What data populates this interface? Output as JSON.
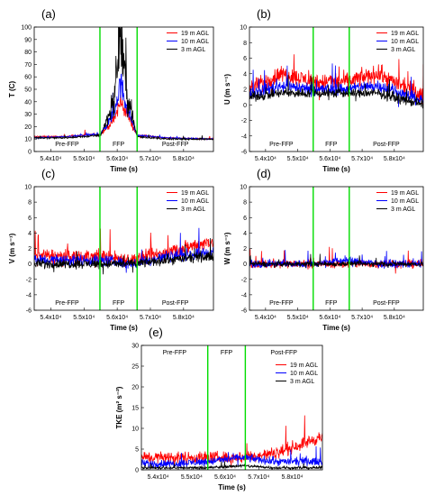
{
  "chart_data": [
    {
      "type": "line",
      "panel": "(a)",
      "xlabel": "Time (s)",
      "ylabel": "T (C)",
      "xlim": [
        53500,
        58900
      ],
      "ylim": [
        0,
        100
      ],
      "yticks": [
        0,
        10,
        20,
        30,
        40,
        50,
        60,
        70,
        80,
        90,
        100
      ],
      "xticks": [
        54000,
        55000,
        56000,
        57000,
        58000
      ],
      "xtick_labels": [
        "5.4x10⁴",
        "5.5x10⁴",
        "5.6x10⁴",
        "5.7x10⁴",
        "5.8x10⁴"
      ],
      "ffp_bounds": [
        55480,
        56600
      ],
      "regions": [
        "Pre-FFP",
        "FFP",
        "Post-FFP"
      ],
      "legend_position": "top-right",
      "series": [
        {
          "name": "19 m AGL",
          "color": "#ff0000",
          "x": [
            53500,
            54500,
            55500,
            55900,
            56100,
            56300,
            56600,
            57500,
            58900
          ],
          "values": [
            12,
            12,
            14,
            25,
            40,
            30,
            13,
            11,
            10
          ]
        },
        {
          "name": "10 m AGL",
          "color": "#0000ff",
          "x": [
            53500,
            54500,
            55500,
            55900,
            56100,
            56300,
            56600,
            57500,
            58900
          ],
          "values": [
            11,
            12,
            14,
            30,
            55,
            35,
            13,
            11,
            10
          ]
        },
        {
          "name": "3 m AGL",
          "color": "#000000",
          "x": [
            53500,
            54500,
            55500,
            55900,
            56100,
            56300,
            56600,
            57500,
            58900
          ],
          "values": [
            11,
            11,
            13,
            40,
            95,
            45,
            12,
            10,
            10
          ]
        }
      ]
    },
    {
      "type": "line",
      "panel": "(b)",
      "xlabel": "Time (s)",
      "ylabel": "U (m s⁻¹)",
      "xlim": [
        53500,
        58900
      ],
      "ylim": [
        -6,
        10
      ],
      "yticks": [
        -6,
        -4,
        -2,
        0,
        2,
        4,
        6,
        8,
        10
      ],
      "xticks": [
        54000,
        55000,
        56000,
        57000,
        58000
      ],
      "xtick_labels": [
        "5.4x10⁴",
        "5.5x10⁴",
        "5.6x10⁴",
        "5.7x10⁴",
        "5.8x10⁴"
      ],
      "ffp_bounds": [
        55480,
        56600
      ],
      "regions": [
        "Pre-FFP",
        "FFP",
        "Post-FFP"
      ],
      "legend_position": "top-right",
      "series": [
        {
          "name": "19 m AGL",
          "color": "#ff0000",
          "x": [
            53500,
            54500,
            55500,
            56500,
            57500,
            58900
          ],
          "values": [
            2,
            4,
            3,
            3,
            4,
            1
          ]
        },
        {
          "name": "10 m AGL",
          "color": "#0000ff",
          "x": [
            53500,
            54500,
            55500,
            56500,
            57500,
            58900
          ],
          "values": [
            1.5,
            2.5,
            2,
            2,
            2.5,
            0.5
          ]
        },
        {
          "name": "3 m AGL",
          "color": "#000000",
          "x": [
            53500,
            54500,
            55500,
            56500,
            57500,
            58900
          ],
          "values": [
            1,
            1.5,
            1.5,
            1.5,
            1.5,
            0
          ]
        }
      ]
    },
    {
      "type": "line",
      "panel": "(c)",
      "xlabel": "Time (s)",
      "ylabel": "V (m s⁻¹)",
      "xlim": [
        53500,
        58900
      ],
      "ylim": [
        -6,
        10
      ],
      "yticks": [
        -6,
        -4,
        -2,
        0,
        2,
        4,
        6,
        8,
        10
      ],
      "xticks": [
        54000,
        55000,
        56000,
        57000,
        58000
      ],
      "xtick_labels": [
        "5.4x10⁴",
        "5.5x10⁴",
        "5.6x10⁴",
        "5.7x10⁴",
        "5.8x10⁴"
      ],
      "ffp_bounds": [
        55480,
        56600
      ],
      "regions": [
        "Pre-FFP",
        "FFP",
        "Post-FFP"
      ],
      "legend_position": "top-right",
      "series": [
        {
          "name": "19 m AGL",
          "color": "#ff0000",
          "x": [
            53500,
            54500,
            55500,
            56500,
            57500,
            58900
          ],
          "values": [
            1,
            1,
            1,
            0.5,
            1.5,
            3
          ]
        },
        {
          "name": "10 m AGL",
          "color": "#0000ff",
          "x": [
            53500,
            54500,
            55500,
            56500,
            57500,
            58900
          ],
          "values": [
            0.5,
            0.5,
            0.5,
            0,
            1,
            1.5
          ]
        },
        {
          "name": "3 m AGL",
          "color": "#000000",
          "x": [
            53500,
            54500,
            55500,
            56500,
            57500,
            58900
          ],
          "values": [
            0,
            0,
            0,
            0,
            0.5,
            1
          ]
        }
      ]
    },
    {
      "type": "line",
      "panel": "(d)",
      "xlabel": "Time (s)",
      "ylabel": "W (m s⁻¹)",
      "xlim": [
        53500,
        58900
      ],
      "ylim": [
        -6,
        10
      ],
      "yticks": [
        -6,
        -4,
        -2,
        0,
        2,
        4,
        6,
        8,
        10
      ],
      "xticks": [
        54000,
        55000,
        56000,
        57000,
        58000
      ],
      "xtick_labels": [
        "5.4x10⁴",
        "5.5x10⁴",
        "5.6x10⁴",
        "5.7x10⁴",
        "5.8x10⁴"
      ],
      "ffp_bounds": [
        55480,
        56600
      ],
      "regions": [
        "Pre-FFP",
        "FFP",
        "Post-FFP"
      ],
      "legend_position": "top-right",
      "series": [
        {
          "name": "19 m AGL",
          "color": "#ff0000",
          "x": [
            53500,
            54500,
            55500,
            56500,
            57500,
            58900
          ],
          "values": [
            0,
            0,
            0,
            0,
            0,
            0
          ]
        },
        {
          "name": "10 m AGL",
          "color": "#0000ff",
          "x": [
            53500,
            54500,
            55500,
            56500,
            57500,
            58900
          ],
          "values": [
            0,
            0,
            0,
            0.5,
            0,
            0
          ]
        },
        {
          "name": "3 m AGL",
          "color": "#000000",
          "x": [
            53500,
            54500,
            55500,
            56500,
            57500,
            58900
          ],
          "values": [
            0,
            0,
            0,
            0,
            0,
            0
          ]
        }
      ]
    },
    {
      "type": "line",
      "panel": "(e)",
      "xlabel": "Time (s)",
      "ylabel": "TKE (m² s⁻²)",
      "xlim": [
        53500,
        58900
      ],
      "ylim": [
        0,
        30
      ],
      "yticks": [
        0,
        5,
        10,
        15,
        20,
        25,
        30
      ],
      "xticks": [
        54000,
        55000,
        56000,
        57000,
        58000
      ],
      "xtick_labels": [
        "5.4x10⁴",
        "5.5x10⁴",
        "5.6x10⁴",
        "5.7x10⁴",
        "5.8x10⁴"
      ],
      "ffp_bounds": [
        55480,
        56600
      ],
      "regions": [
        "Pre-FFP",
        "FFP",
        "Post-FFP"
      ],
      "legend_position": "top-right",
      "series": [
        {
          "name": "19 m AGL",
          "color": "#ff0000",
          "x": [
            53500,
            54500,
            55500,
            56500,
            57500,
            58900
          ],
          "values": [
            3,
            3,
            3,
            3,
            4,
            8
          ]
        },
        {
          "name": "10 m AGL",
          "color": "#0000ff",
          "x": [
            53500,
            54500,
            55500,
            56500,
            57500,
            58900
          ],
          "values": [
            1.5,
            1.5,
            2,
            3,
            2,
            2
          ]
        },
        {
          "name": "3 m AGL",
          "color": "#000000",
          "x": [
            53500,
            54500,
            55500,
            56500,
            57500,
            58900
          ],
          "values": [
            0.5,
            0.5,
            0.5,
            1,
            0.5,
            0.5
          ]
        }
      ]
    }
  ]
}
